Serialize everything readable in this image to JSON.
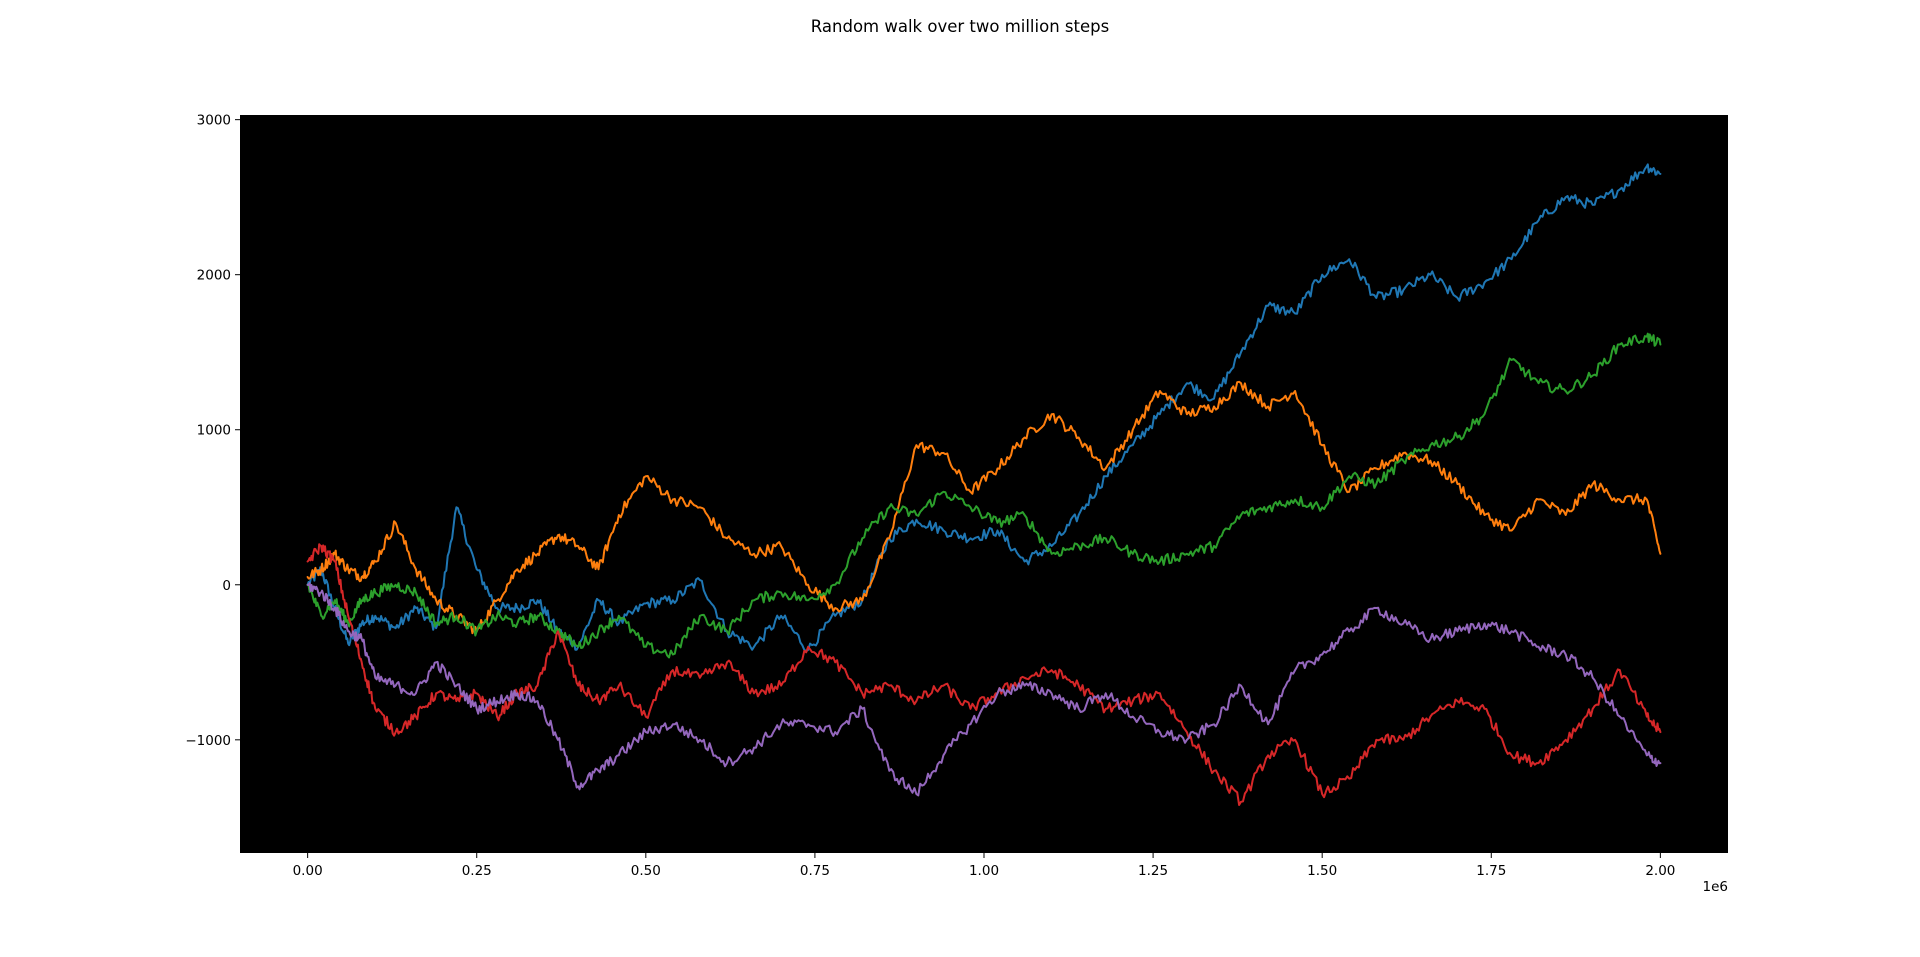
{
  "chart_data": {
    "type": "line",
    "title": "Random walk over two million steps",
    "xlabel": "",
    "ylabel": "",
    "x_offset_label": "1e6",
    "xlim": [
      -100000,
      2100000
    ],
    "ylim": [
      -1730,
      3030
    ],
    "x_ticks": [
      0,
      250000,
      500000,
      750000,
      1000000,
      1250000,
      1500000,
      1750000,
      2000000
    ],
    "x_tick_labels": [
      "0.00",
      "0.25",
      "0.50",
      "0.75",
      "1.00",
      "1.25",
      "1.50",
      "1.75",
      "2.00"
    ],
    "y_ticks": [
      -1000,
      0,
      1000,
      2000,
      3000
    ],
    "y_tick_labels": [
      "−1000",
      "0",
      "1000",
      "2000",
      "3000"
    ],
    "background": "#000000",
    "grid": false,
    "legend": "none",
    "series": [
      {
        "color": "#1f77b4",
        "x": [
          0,
          20000,
          40000,
          60000,
          80000,
          100000,
          130000,
          160000,
          190000,
          220000,
          250000,
          280000,
          310000,
          340000,
          370000,
          400000,
          430000,
          460000,
          500000,
          540000,
          580000,
          620000,
          660000,
          700000,
          740000,
          780000,
          820000,
          860000,
          900000,
          940000,
          980000,
          1020000,
          1060000,
          1100000,
          1140000,
          1180000,
          1220000,
          1260000,
          1300000,
          1340000,
          1380000,
          1420000,
          1460000,
          1500000,
          1540000,
          1580000,
          1620000,
          1660000,
          1700000,
          1740000,
          1780000,
          1820000,
          1860000,
          1900000,
          1940000,
          1980000,
          2000000
        ],
        "y": [
          0,
          100,
          -150,
          -380,
          -250,
          -200,
          -280,
          -150,
          -280,
          500,
          100,
          -150,
          -150,
          -100,
          -300,
          -400,
          -100,
          -250,
          -120,
          -100,
          30,
          -300,
          -400,
          -200,
          -420,
          -200,
          -100,
          300,
          420,
          350,
          300,
          350,
          150,
          250,
          450,
          700,
          900,
          1100,
          1300,
          1200,
          1500,
          1800,
          1750,
          2000,
          2100,
          1850,
          1900,
          2000,
          1850,
          1950,
          2100,
          2350,
          2500,
          2450,
          2550,
          2700,
          2650
        ]
      },
      {
        "color": "#ff7f0e",
        "x": [
          0,
          20000,
          40000,
          60000,
          80000,
          100000,
          130000,
          160000,
          190000,
          220000,
          250000,
          280000,
          310000,
          340000,
          370000,
          400000,
          430000,
          460000,
          500000,
          540000,
          580000,
          620000,
          660000,
          700000,
          740000,
          780000,
          820000,
          860000,
          900000,
          940000,
          980000,
          1020000,
          1060000,
          1100000,
          1140000,
          1180000,
          1220000,
          1260000,
          1300000,
          1340000,
          1380000,
          1420000,
          1460000,
          1500000,
          1540000,
          1580000,
          1620000,
          1660000,
          1700000,
          1740000,
          1780000,
          1820000,
          1860000,
          1900000,
          1940000,
          1980000,
          2000000
        ],
        "y": [
          50,
          100,
          200,
          100,
          50,
          150,
          400,
          100,
          -100,
          -200,
          -300,
          -100,
          100,
          200,
          320,
          250,
          100,
          450,
          700,
          550,
          500,
          300,
          200,
          250,
          0,
          -150,
          -100,
          300,
          900,
          850,
          600,
          750,
          950,
          1100,
          950,
          750,
          1000,
          1250,
          1100,
          1150,
          1300,
          1150,
          1250,
          900,
          600,
          750,
          850,
          800,
          650,
          450,
          350,
          550,
          450,
          650,
          550,
          550,
          200
        ]
      },
      {
        "color": "#2ca02c",
        "x": [
          0,
          20000,
          40000,
          60000,
          80000,
          100000,
          130000,
          160000,
          190000,
          220000,
          250000,
          280000,
          310000,
          340000,
          370000,
          400000,
          430000,
          460000,
          500000,
          540000,
          580000,
          620000,
          660000,
          700000,
          740000,
          780000,
          820000,
          860000,
          900000,
          940000,
          980000,
          1020000,
          1060000,
          1100000,
          1140000,
          1180000,
          1220000,
          1260000,
          1300000,
          1340000,
          1380000,
          1420000,
          1460000,
          1500000,
          1540000,
          1580000,
          1620000,
          1660000,
          1700000,
          1740000,
          1780000,
          1820000,
          1860000,
          1900000,
          1940000,
          1980000,
          2000000
        ],
        "y": [
          0,
          -200,
          -100,
          -250,
          -100,
          -50,
          0,
          -50,
          -250,
          -200,
          -300,
          -200,
          -250,
          -200,
          -300,
          -400,
          -300,
          -200,
          -400,
          -450,
          -200,
          -300,
          -100,
          -50,
          -100,
          0,
          300,
          500,
          450,
          600,
          500,
          400,
          450,
          200,
          250,
          300,
          200,
          150,
          200,
          250,
          450,
          500,
          550,
          500,
          700,
          650,
          800,
          900,
          950,
          1100,
          1450,
          1300,
          1250,
          1350,
          1550,
          1600,
          1550
        ]
      },
      {
        "color": "#d62728",
        "x": [
          0,
          20000,
          40000,
          60000,
          80000,
          100000,
          130000,
          160000,
          190000,
          220000,
          250000,
          280000,
          310000,
          340000,
          370000,
          400000,
          430000,
          460000,
          500000,
          540000,
          580000,
          620000,
          660000,
          700000,
          740000,
          780000,
          820000,
          860000,
          900000,
          940000,
          980000,
          1020000,
          1060000,
          1100000,
          1140000,
          1180000,
          1220000,
          1260000,
          1300000,
          1340000,
          1380000,
          1420000,
          1460000,
          1500000,
          1540000,
          1580000,
          1620000,
          1660000,
          1700000,
          1740000,
          1780000,
          1820000,
          1860000,
          1900000,
          1940000,
          1980000,
          2000000
        ],
        "y": [
          150,
          250,
          150,
          -200,
          -500,
          -800,
          -950,
          -850,
          -700,
          -750,
          -700,
          -850,
          -700,
          -650,
          -300,
          -650,
          -750,
          -650,
          -850,
          -550,
          -600,
          -500,
          -700,
          -650,
          -400,
          -500,
          -700,
          -650,
          -750,
          -650,
          -800,
          -700,
          -600,
          -550,
          -650,
          -800,
          -750,
          -700,
          -950,
          -1200,
          -1400,
          -1100,
          -1000,
          -1350,
          -1250,
          -1000,
          -1000,
          -850,
          -750,
          -800,
          -1100,
          -1150,
          -1000,
          -800,
          -550,
          -850,
          -950
        ]
      },
      {
        "color": "#9467bd",
        "x": [
          0,
          20000,
          40000,
          60000,
          80000,
          100000,
          130000,
          160000,
          190000,
          220000,
          250000,
          280000,
          310000,
          340000,
          370000,
          400000,
          430000,
          460000,
          500000,
          540000,
          580000,
          620000,
          660000,
          700000,
          740000,
          780000,
          820000,
          860000,
          900000,
          940000,
          980000,
          1020000,
          1060000,
          1100000,
          1140000,
          1180000,
          1220000,
          1260000,
          1300000,
          1340000,
          1380000,
          1420000,
          1460000,
          1500000,
          1540000,
          1580000,
          1620000,
          1660000,
          1700000,
          1740000,
          1780000,
          1820000,
          1860000,
          1900000,
          1940000,
          1980000,
          2000000
        ],
        "y": [
          0,
          -50,
          -150,
          -300,
          -350,
          -600,
          -650,
          -700,
          -500,
          -650,
          -800,
          -750,
          -700,
          -750,
          -1000,
          -1300,
          -1200,
          -1100,
          -950,
          -900,
          -1000,
          -1150,
          -1050,
          -900,
          -900,
          -950,
          -800,
          -1200,
          -1350,
          -1100,
          -900,
          -700,
          -650,
          -700,
          -800,
          -700,
          -850,
          -950,
          -1000,
          -900,
          -650,
          -900,
          -550,
          -450,
          -300,
          -150,
          -250,
          -350,
          -300,
          -250,
          -300,
          -400,
          -450,
          -600,
          -850,
          -1100,
          -1150
        ]
      }
    ]
  }
}
